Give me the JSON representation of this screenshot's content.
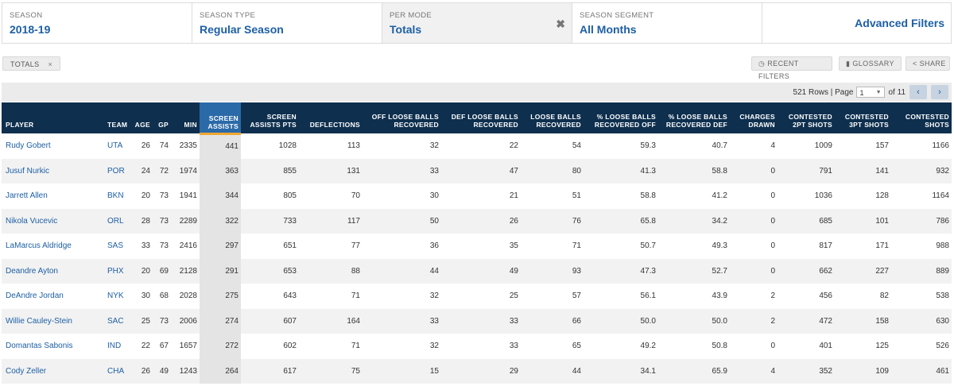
{
  "filters": [
    {
      "label": "SEASON",
      "value": "2018-19"
    },
    {
      "label": "SEASON TYPE",
      "value": "Regular Season"
    },
    {
      "label": "PER MODE",
      "value": "Totals",
      "clear_icon": "✖"
    },
    {
      "label": "SEASON SEGMENT",
      "value": "All Months"
    }
  ],
  "advanced_filters": "Advanced Filters",
  "chip": {
    "label": "TOTALS",
    "close": "×"
  },
  "tools": {
    "recent": "RECENT FILTERS",
    "glossary": "GLOSSARY",
    "share": "SHARE"
  },
  "pager": {
    "rows_text": "521 Rows | Page",
    "page": "1",
    "of_text": "of 11",
    "prev": "‹",
    "next": "›"
  },
  "columns": [
    "PLAYER",
    "TEAM",
    "AGE",
    "GP",
    "MIN",
    "SCREEN ASSISTS",
    "SCREEN ASSISTS PTS",
    "DEFLECTIONS",
    "OFF LOOSE BALLS RECOVERED",
    "DEF LOOSE BALLS RECOVERED",
    "LOOSE BALLS RECOVERED",
    "% LOOSE BALLS RECOVERED OFF",
    "% LOOSE BALLS RECOVERED DEF",
    "CHARGES DRAWN",
    "CONTESTED 2PT SHOTS",
    "CONTESTED 3PT SHOTS",
    "CONTESTED SHOTS"
  ],
  "rows": [
    [
      "Rudy Gobert",
      "UTA",
      "26",
      "74",
      "2335",
      "441",
      "1028",
      "113",
      "32",
      "22",
      "54",
      "59.3",
      "40.7",
      "4",
      "1009",
      "157",
      "1166"
    ],
    [
      "Jusuf Nurkic",
      "POR",
      "24",
      "72",
      "1974",
      "363",
      "855",
      "131",
      "33",
      "47",
      "80",
      "41.3",
      "58.8",
      "0",
      "791",
      "141",
      "932"
    ],
    [
      "Jarrett Allen",
      "BKN",
      "20",
      "73",
      "1941",
      "344",
      "805",
      "70",
      "30",
      "21",
      "51",
      "58.8",
      "41.2",
      "0",
      "1036",
      "128",
      "1164"
    ],
    [
      "Nikola Vucevic",
      "ORL",
      "28",
      "73",
      "2289",
      "322",
      "733",
      "117",
      "50",
      "26",
      "76",
      "65.8",
      "34.2",
      "0",
      "685",
      "101",
      "786"
    ],
    [
      "LaMarcus Aldridge",
      "SAS",
      "33",
      "73",
      "2416",
      "297",
      "651",
      "77",
      "36",
      "35",
      "71",
      "50.7",
      "49.3",
      "0",
      "817",
      "171",
      "988"
    ],
    [
      "Deandre Ayton",
      "PHX",
      "20",
      "69",
      "2128",
      "291",
      "653",
      "88",
      "44",
      "49",
      "93",
      "47.3",
      "52.7",
      "0",
      "662",
      "227",
      "889"
    ],
    [
      "DeAndre Jordan",
      "NYK",
      "30",
      "68",
      "2028",
      "275",
      "643",
      "71",
      "32",
      "25",
      "57",
      "56.1",
      "43.9",
      "2",
      "456",
      "82",
      "538"
    ],
    [
      "Willie Cauley-Stein",
      "SAC",
      "25",
      "73",
      "2006",
      "274",
      "607",
      "164",
      "33",
      "33",
      "66",
      "50.0",
      "50.0",
      "2",
      "472",
      "158",
      "630"
    ],
    [
      "Domantas Sabonis",
      "IND",
      "22",
      "67",
      "1657",
      "272",
      "602",
      "71",
      "32",
      "33",
      "65",
      "49.2",
      "50.8",
      "0",
      "401",
      "125",
      "526"
    ],
    [
      "Cody Zeller",
      "CHA",
      "26",
      "49",
      "1243",
      "264",
      "617",
      "75",
      "15",
      "29",
      "44",
      "34.1",
      "65.9",
      "4",
      "352",
      "109",
      "461"
    ]
  ]
}
